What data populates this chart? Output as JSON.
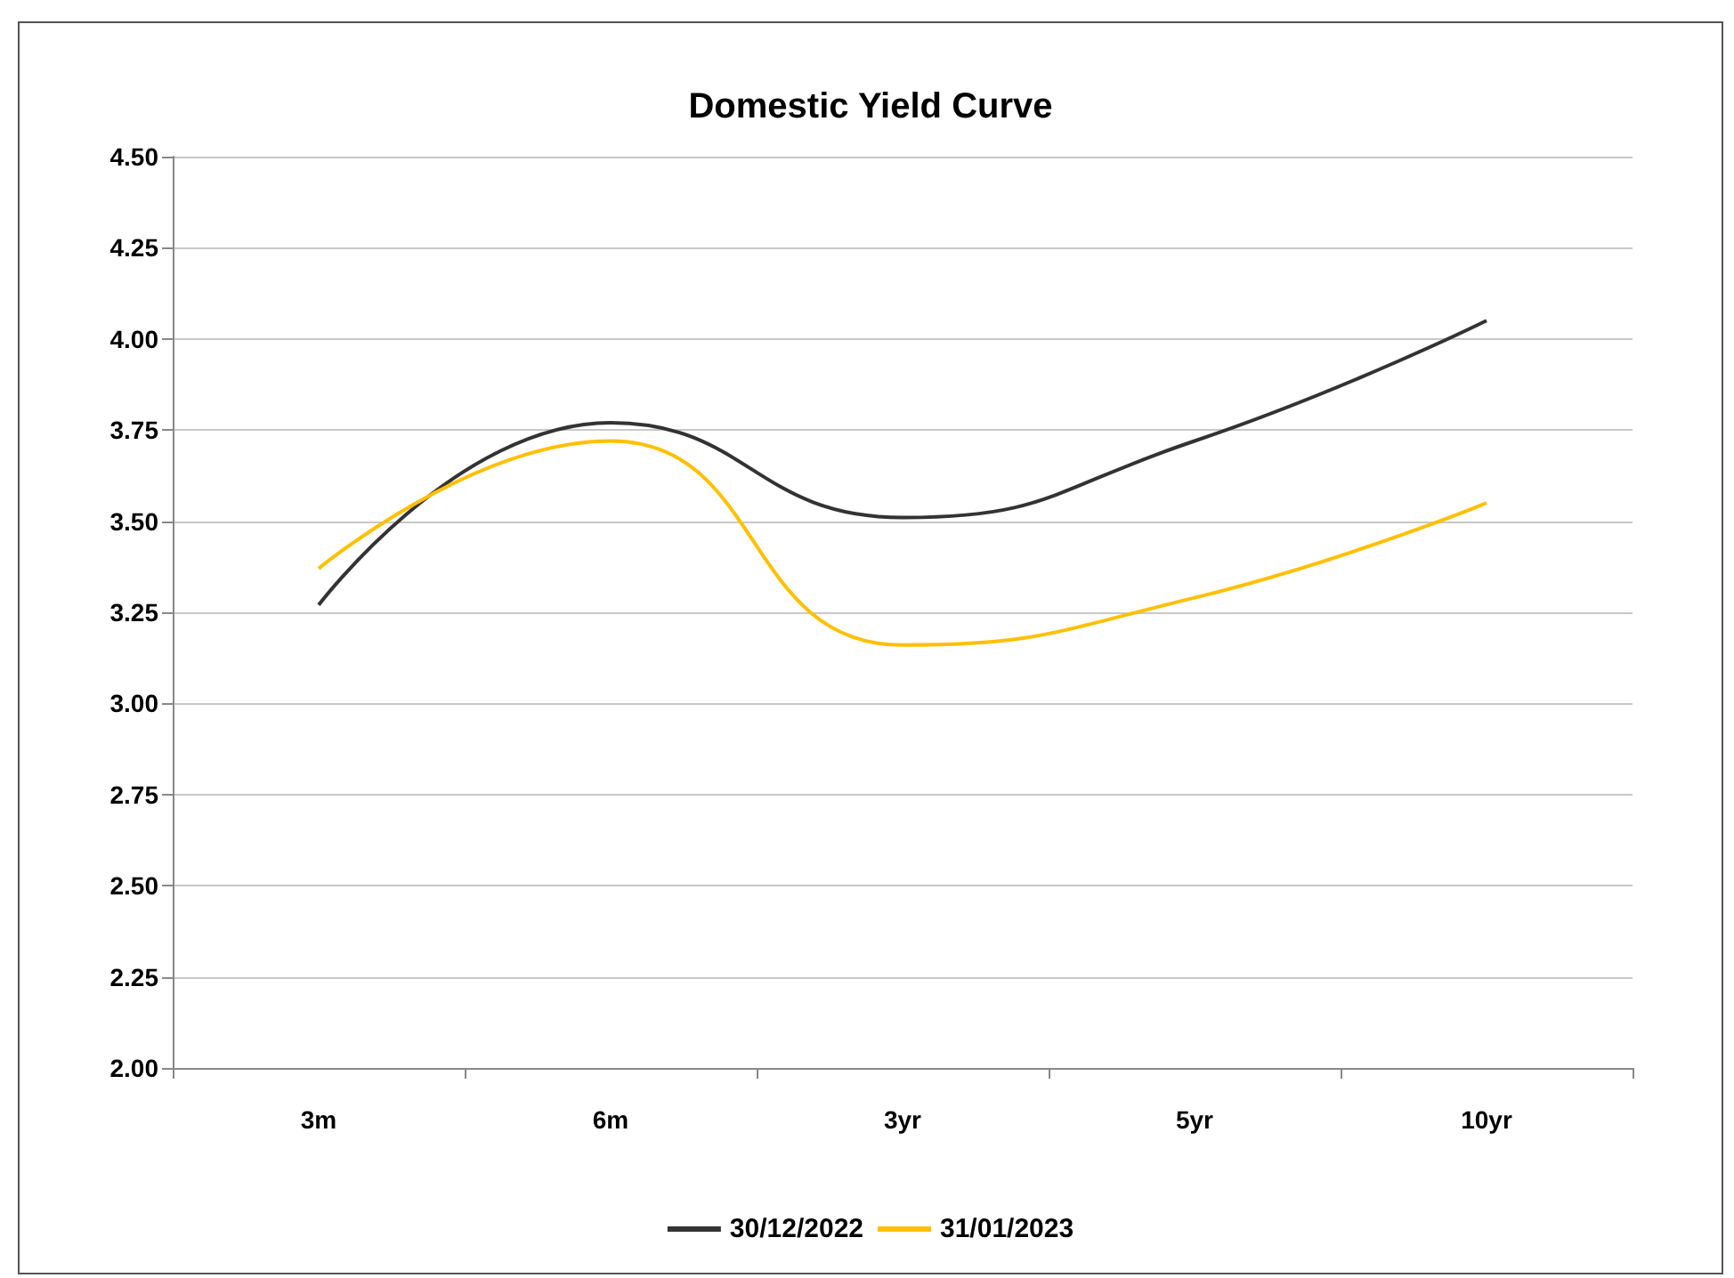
{
  "chart_data": {
    "type": "line",
    "title": "Domestic Yield Curve",
    "categories": [
      "3m",
      "6m",
      "3yr",
      "5yr",
      "10yr"
    ],
    "series": [
      {
        "name": "30/12/2022",
        "color": "#333333",
        "values": [
          3.27,
          3.77,
          3.51,
          3.72,
          4.05
        ]
      },
      {
        "name": "31/01/2023",
        "color": "#ffc000",
        "values": [
          3.37,
          3.72,
          3.16,
          3.29,
          3.55
        ]
      }
    ],
    "ylim": [
      2,
      4.5
    ],
    "yticks": [
      {
        "value": 2,
        "label": "2.00"
      },
      {
        "value": 2.25,
        "label": "2.25"
      },
      {
        "value": 2.5,
        "label": "2.50"
      },
      {
        "value": 2.75,
        "label": "2.75"
      },
      {
        "value": 3,
        "label": "3.00"
      },
      {
        "value": 3.25,
        "label": "3.25"
      },
      {
        "value": 3.5,
        "label": "3.50"
      },
      {
        "value": 3.75,
        "label": "3.75"
      },
      {
        "value": 4,
        "label": "4.00"
      },
      {
        "value": 4.25,
        "label": "4.25"
      },
      {
        "value": 4.5,
        "label": "4.50"
      }
    ],
    "grid": "y",
    "legend": "bottom",
    "marker": "none",
    "line_style": "solid"
  }
}
